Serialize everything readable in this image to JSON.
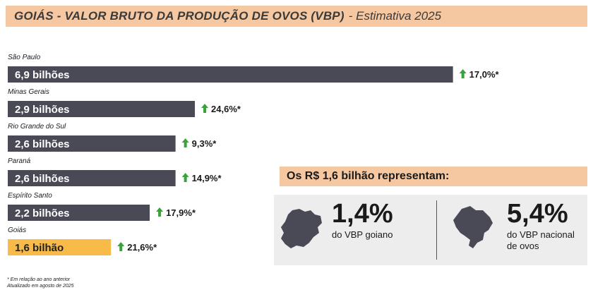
{
  "header": {
    "title_main": "GOIÁS - VALOR BRUTO DA PRODUÇÃO DE OVOS (VBP)",
    "title_sub": "- Estimativa 2025"
  },
  "chart_data": {
    "type": "bar",
    "orientation": "horizontal",
    "title": "GOIÁS - VALOR BRUTO DA PRODUÇÃO DE OVOS (VBP) - Estimativa 2025",
    "categories": [
      "São Paulo",
      "Minas Gerais",
      "Rio Grande do Sul",
      "Paraná",
      "Espírito Santo",
      "Goiás"
    ],
    "values": [
      6.9,
      2.9,
      2.6,
      2.6,
      2.2,
      1.6
    ],
    "value_labels": [
      "6,9 bilhões",
      "2,9 bilhões",
      "2,6 bilhões",
      "2,6 bilhões",
      "2,2 bilhões",
      "1,6 bilhão"
    ],
    "growth_labels": [
      "17,0%*",
      "24,6%*",
      "9,3%*",
      "14,9%*",
      "17,9%*",
      "21,6%*"
    ],
    "growth_values": [
      17.0,
      24.6,
      9.3,
      14.9,
      17.9,
      21.6
    ],
    "highlight": "Goiás",
    "grid": false,
    "colors": {
      "bar": "#4a4a56",
      "highlight": "#f8bb4a",
      "arrow": "#3aa23a"
    }
  },
  "info": {
    "header": "Os R$ 1,6 bilhão representam:",
    "stats": [
      {
        "value": "1,4%",
        "line1": "do VBP goiano",
        "line2": "",
        "icon": "goias-map-icon"
      },
      {
        "value": "5,4%",
        "line1": "do VBP nacional",
        "line2": "de ovos",
        "icon": "brazil-map-icon"
      }
    ]
  },
  "footnotes": [
    "* Em relação ao ano anterior",
    "Atualizado em agosto de 2025"
  ]
}
